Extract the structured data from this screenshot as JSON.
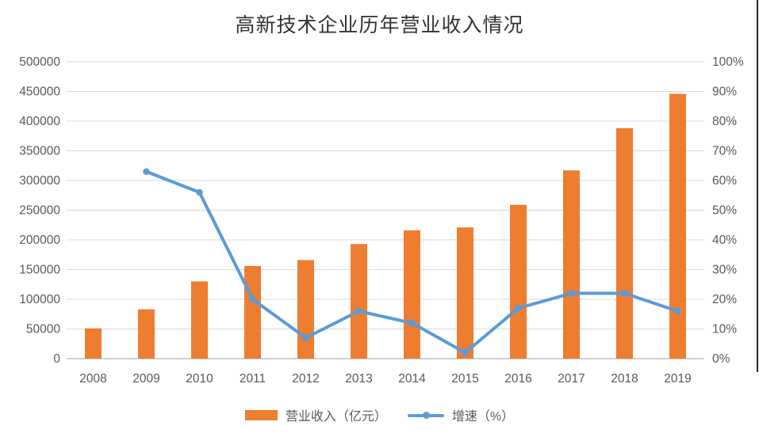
{
  "chart_data": {
    "type": "bar+line",
    "title": "高新技术企业历年营业收入情况",
    "categories": [
      "2008",
      "2009",
      "2010",
      "2011",
      "2012",
      "2013",
      "2014",
      "2015",
      "2016",
      "2017",
      "2018",
      "2019"
    ],
    "series": [
      {
        "name": "营业收入（亿元）",
        "type": "bar",
        "axis": "left",
        "color": "#ED7D31",
        "values": [
          51000,
          83000,
          130000,
          156000,
          166000,
          193000,
          216000,
          221000,
          259000,
          317000,
          388000,
          446000
        ]
      },
      {
        "name": "增速（%）",
        "type": "line",
        "axis": "right",
        "color": "#5B9BD5",
        "values": [
          null,
          63,
          56,
          20,
          7,
          16,
          12,
          2,
          17,
          22,
          22,
          16
        ]
      }
    ],
    "left_axis": {
      "min": 0,
      "max": 500000,
      "step": 50000,
      "tick_labels": [
        "0",
        "50000",
        "100000",
        "150000",
        "200000",
        "250000",
        "300000",
        "350000",
        "400000",
        "450000",
        "500000"
      ]
    },
    "right_axis": {
      "min": 0,
      "max": 100,
      "step": 10,
      "suffix": "%",
      "tick_labels": [
        "0%",
        "10%",
        "20%",
        "30%",
        "40%",
        "50%",
        "60%",
        "70%",
        "80%",
        "90%",
        "100%"
      ]
    },
    "grid": true,
    "legend_position": "bottom"
  },
  "colors": {
    "background": "#FFFFFF",
    "bar": "#ED7D31",
    "line": "#5B9BD5",
    "gridline": "#D9D9D9",
    "axis_line": "#BFBFBF",
    "tick_text": "#595959",
    "title_text": "#333333",
    "edge_artifact": "#262626"
  }
}
